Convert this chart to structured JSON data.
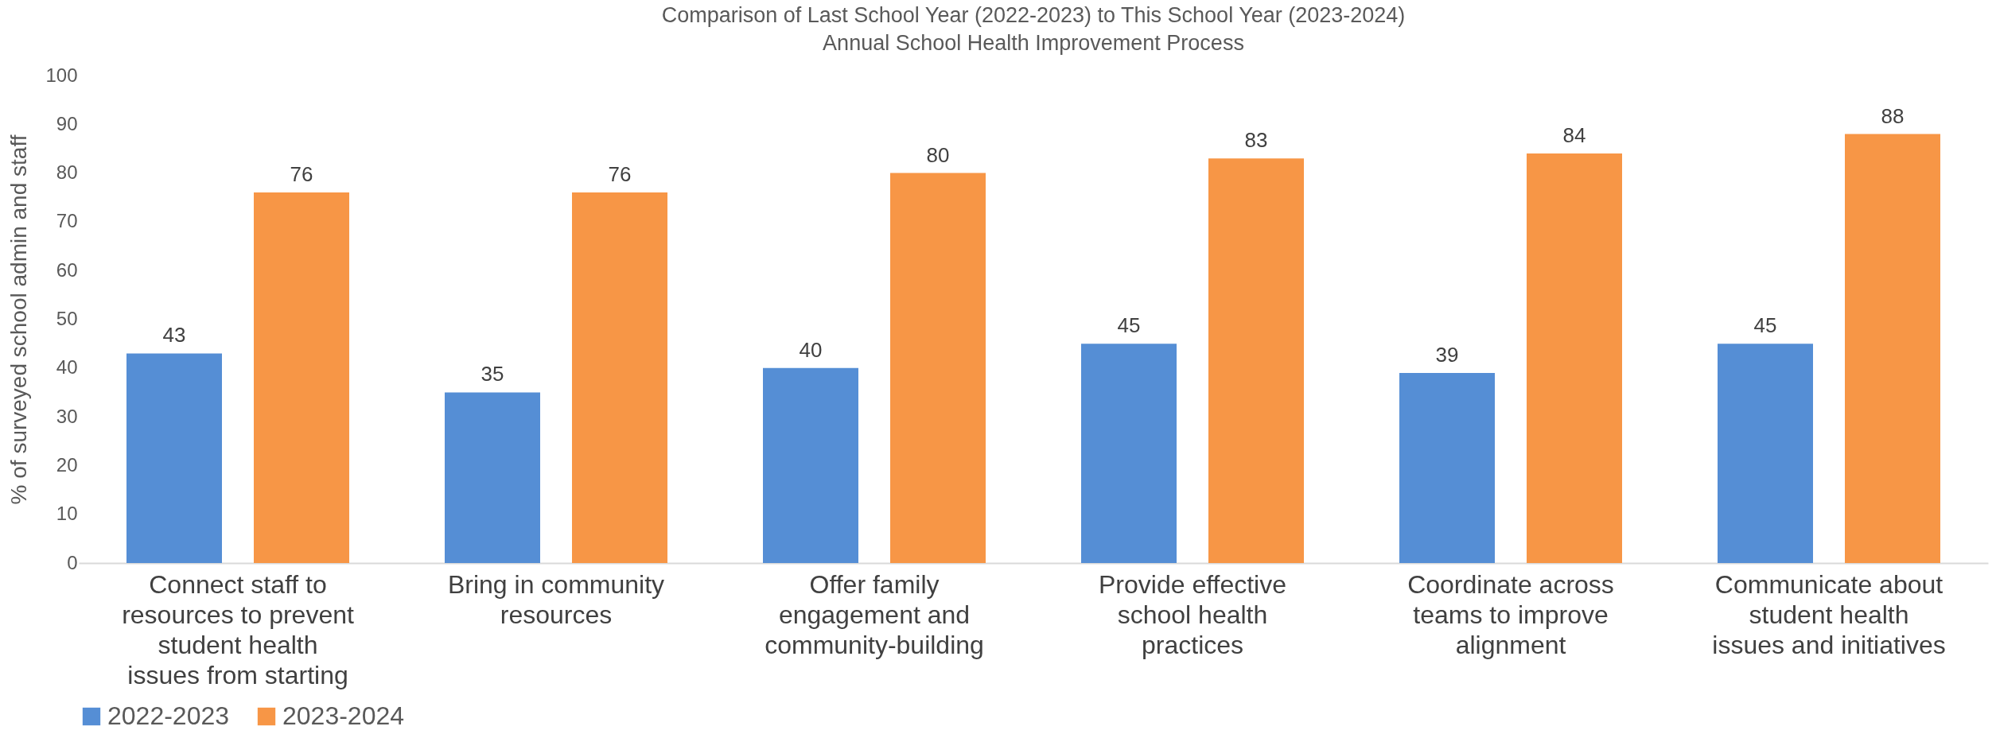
{
  "chart_data": {
    "type": "bar",
    "title": "Comparison of Last School Year (2022-2023) to This School Year (2023-2024)",
    "subtitle": "Annual School Health Improvement Process",
    "ylabel": "% of surveyed school admin and staff",
    "categories": [
      "Connect staff to resources to prevent student health issues from starting",
      "Bring in community resources",
      "Offer family engagement and community-building",
      "Provide effective school health practices",
      "Coordinate across teams to improve alignment",
      "Communicate about student health issues and initiatives"
    ],
    "series": [
      {
        "name": "2022-2023",
        "color": "#558ed5",
        "values": [
          43,
          35,
          40,
          45,
          39,
          45
        ]
      },
      {
        "name": "2023-2024",
        "color": "#f79646",
        "values": [
          76,
          76,
          80,
          83,
          84,
          88
        ]
      }
    ],
    "ylim": [
      0,
      100
    ],
    "yticks": [
      0,
      10,
      20,
      30,
      40,
      50,
      60,
      70,
      80,
      90,
      100
    ],
    "data_labels": true,
    "legend": "bottom"
  }
}
